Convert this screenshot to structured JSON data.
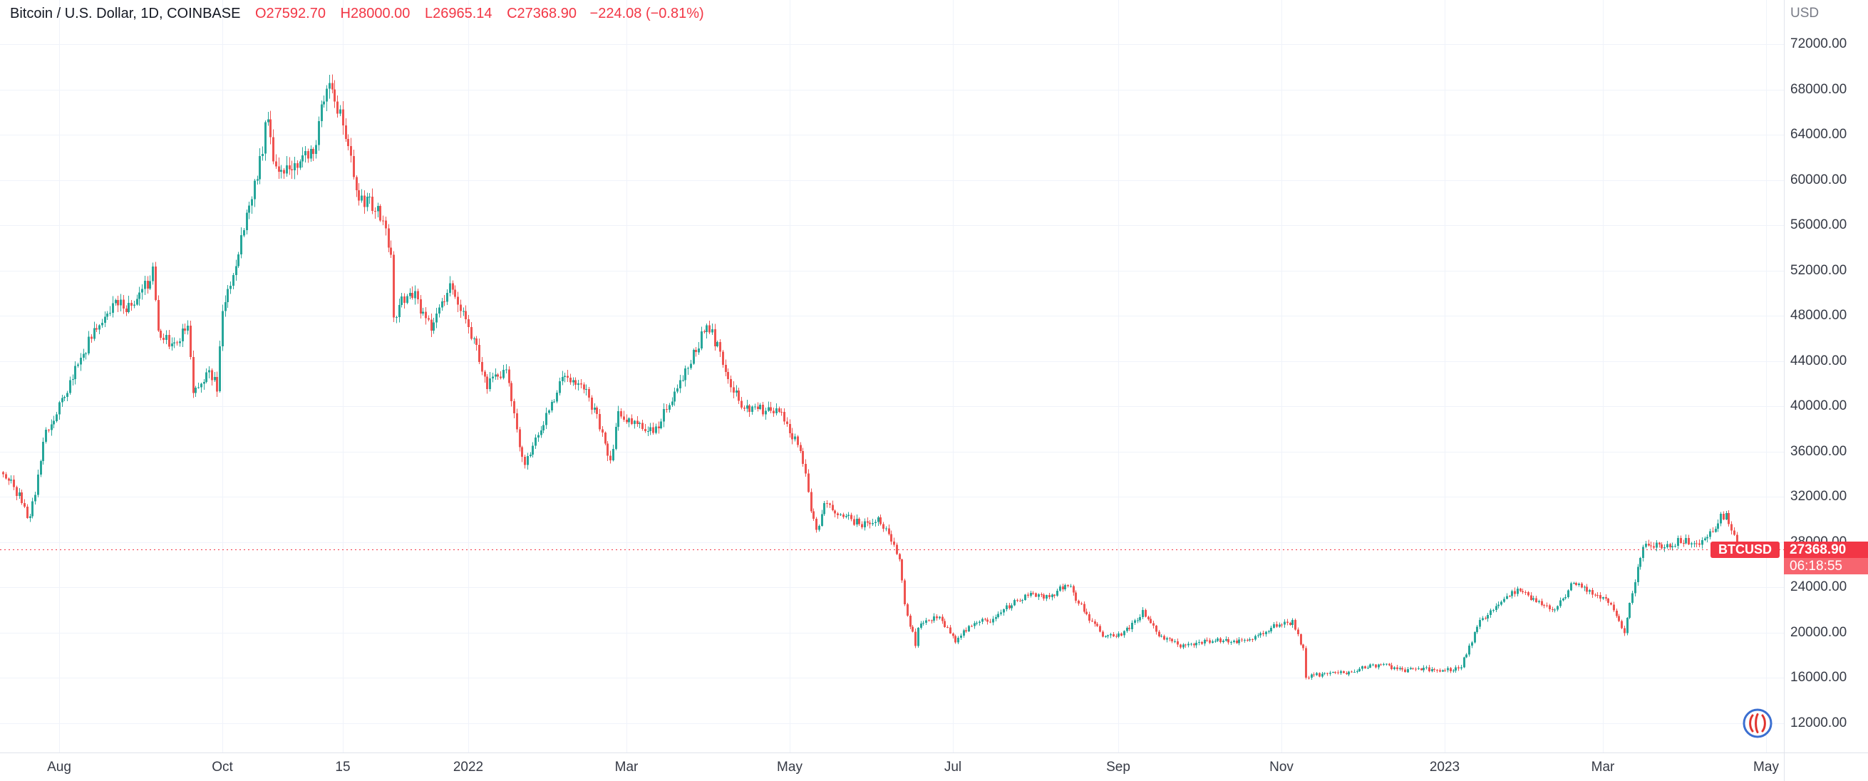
{
  "header": {
    "symbol_title": "Bitcoin / U.S. Dollar, 1D, COINBASE",
    "ohlc": {
      "open": "O27592.70",
      "high": "H28000.00",
      "low": "L26965.14",
      "close": "C27368.90",
      "change": "−224.08 (−0.81%)"
    }
  },
  "last_price": {
    "symbol_tag": "BTCUSD",
    "price": "27368.90",
    "countdown": "06:18:55",
    "value": 27368.9
  },
  "chart_data": {
    "type": "candlestick",
    "symbol": "Bitcoin / U.S. Dollar",
    "interval": "1D",
    "exchange": "COINBASE",
    "currency": "USD",
    "title": "Bitcoin / U.S. Dollar, 1D, COINBASE",
    "up_color": "#26a69a",
    "down_color": "#ef5350",
    "grid_color": "#f0f3fa",
    "last_price_line_color": "#f23645",
    "y_axis_range_visible": [
      10500,
      73800
    ],
    "y_ticks": [
      {
        "value": 72000,
        "label": "72000.00"
      },
      {
        "value": 68000,
        "label": "68000.00"
      },
      {
        "value": 64000,
        "label": "64000.00"
      },
      {
        "value": 60000,
        "label": "60000.00"
      },
      {
        "value": 56000,
        "label": "56000.00"
      },
      {
        "value": 52000,
        "label": "52000.00"
      },
      {
        "value": 48000,
        "label": "48000.00"
      },
      {
        "value": 44000,
        "label": "44000.00"
      },
      {
        "value": 40000,
        "label": "40000.00"
      },
      {
        "value": 36000,
        "label": "36000.00"
      },
      {
        "value": 32000,
        "label": "32000.00"
      },
      {
        "value": 28000,
        "label": "28000.00"
      },
      {
        "value": 24000,
        "label": "24000.00"
      },
      {
        "value": 20000,
        "label": "20000.00"
      },
      {
        "value": 16000,
        "label": "16000.00"
      },
      {
        "value": 12000,
        "label": "12000.00"
      }
    ],
    "x_ticks": [
      {
        "label": "Aug",
        "day": 21
      },
      {
        "label": "Oct",
        "day": 82
      },
      {
        "label": "15",
        "day": 127
      },
      {
        "label": "2022",
        "day": 174
      },
      {
        "label": "Mar",
        "day": 233
      },
      {
        "label": "May",
        "day": 294
      },
      {
        "label": "Jul",
        "day": 355
      },
      {
        "label": "Sep",
        "day": 417
      },
      {
        "label": "Nov",
        "day": 478
      },
      {
        "label": "2023",
        "day": 539
      },
      {
        "label": "Mar",
        "day": 598
      },
      {
        "label": "May",
        "day": 659
      }
    ],
    "last_day": 649,
    "last_candle": {
      "open": 27592.7,
      "high": 28000.0,
      "low": 26965.14,
      "close": 27368.9
    },
    "series_anchors_day_price": [
      [
        0,
        34200
      ],
      [
        7,
        31700
      ],
      [
        9,
        29900
      ],
      [
        12,
        32100
      ],
      [
        15,
        37200
      ],
      [
        21,
        39900
      ],
      [
        28,
        43800
      ],
      [
        35,
        47000
      ],
      [
        42,
        48900
      ],
      [
        49,
        48800
      ],
      [
        56,
        51800
      ],
      [
        58,
        46800
      ],
      [
        63,
        45100
      ],
      [
        69,
        47300
      ],
      [
        71,
        40900
      ],
      [
        77,
        43200
      ],
      [
        80,
        41600
      ],
      [
        82,
        48200
      ],
      [
        89,
        54700
      ],
      [
        96,
        61500
      ],
      [
        99,
        66000
      ],
      [
        101,
        62300
      ],
      [
        103,
        60900
      ],
      [
        110,
        61300
      ],
      [
        117,
        63300
      ],
      [
        120,
        67500
      ],
      [
        122,
        68700
      ],
      [
        126,
        65500
      ],
      [
        133,
        58600
      ],
      [
        140,
        57300
      ],
      [
        145,
        53800
      ],
      [
        146,
        47300
      ],
      [
        148,
        49400
      ],
      [
        153,
        50100
      ],
      [
        160,
        46700
      ],
      [
        167,
        50800
      ],
      [
        174,
        47300
      ],
      [
        181,
        41900
      ],
      [
        188,
        43100
      ],
      [
        193,
        36400
      ],
      [
        195,
        35100
      ],
      [
        202,
        38500
      ],
      [
        209,
        42400
      ],
      [
        216,
        42200
      ],
      [
        223,
        38400
      ],
      [
        227,
        35200
      ],
      [
        230,
        39200
      ],
      [
        237,
        38400
      ],
      [
        244,
        37800
      ],
      [
        251,
        41300
      ],
      [
        258,
        44500
      ],
      [
        262,
        46800
      ],
      [
        265,
        46400
      ],
      [
        272,
        42100
      ],
      [
        276,
        39900
      ],
      [
        283,
        39700
      ],
      [
        290,
        39400
      ],
      [
        293,
        38500
      ],
      [
        298,
        36000
      ],
      [
        300,
        34000
      ],
      [
        302,
        31000
      ],
      [
        304,
        29000
      ],
      [
        307,
        31300
      ],
      [
        314,
        30300
      ],
      [
        321,
        29500
      ],
      [
        328,
        29900
      ],
      [
        335,
        26600
      ],
      [
        337,
        22500
      ],
      [
        341,
        19000
      ],
      [
        342,
        20600
      ],
      [
        349,
        21500
      ],
      [
        356,
        19300
      ],
      [
        363,
        20900
      ],
      [
        370,
        21200
      ],
      [
        377,
        22600
      ],
      [
        384,
        23300
      ],
      [
        391,
        23200
      ],
      [
        398,
        24300
      ],
      [
        405,
        21500
      ],
      [
        412,
        19600
      ],
      [
        419,
        20000
      ],
      [
        426,
        21800
      ],
      [
        433,
        19500
      ],
      [
        440,
        18900
      ],
      [
        447,
        19100
      ],
      [
        454,
        19400
      ],
      [
        461,
        19300
      ],
      [
        468,
        19600
      ],
      [
        475,
        20600
      ],
      [
        482,
        20900
      ],
      [
        486,
        18500
      ],
      [
        487,
        16100
      ],
      [
        489,
        16300
      ],
      [
        496,
        16300
      ],
      [
        503,
        16500
      ],
      [
        510,
        17100
      ],
      [
        517,
        17100
      ],
      [
        524,
        16700
      ],
      [
        531,
        16800
      ],
      [
        538,
        16500
      ],
      [
        545,
        17100
      ],
      [
        552,
        20900
      ],
      [
        559,
        22700
      ],
      [
        566,
        23800
      ],
      [
        573,
        22900
      ],
      [
        580,
        21800
      ],
      [
        587,
        24600
      ],
      [
        594,
        23600
      ],
      [
        601,
        22400
      ],
      [
        606,
        20200
      ],
      [
        610,
        24700
      ],
      [
        613,
        27400
      ],
      [
        615,
        28000
      ],
      [
        620,
        27500
      ],
      [
        627,
        28200
      ],
      [
        634,
        27900
      ],
      [
        637,
        28300
      ],
      [
        642,
        30200
      ],
      [
        644,
        30300
      ],
      [
        647,
        28800
      ],
      [
        648,
        27600
      ],
      [
        649,
        27368.9
      ]
    ]
  }
}
